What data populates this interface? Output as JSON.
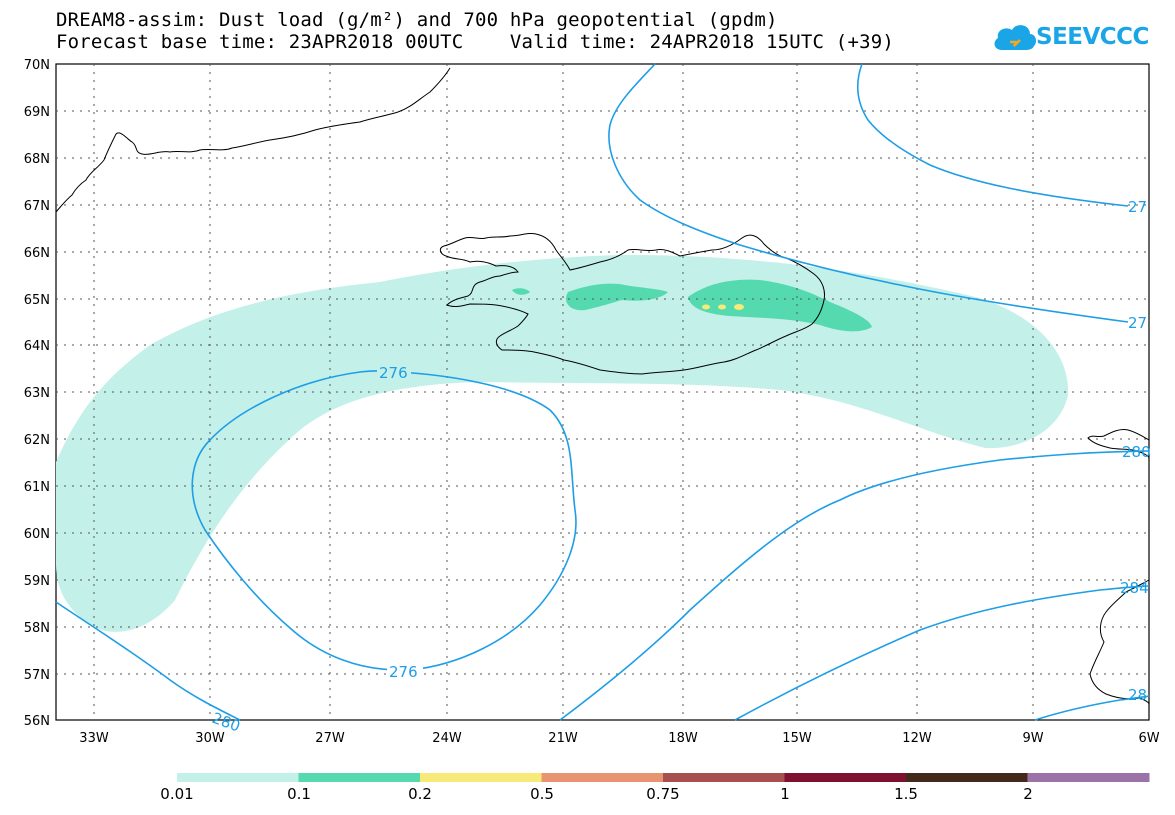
{
  "header": {
    "title_line1": "DREAM8-assim: Dust load (g/m²) and 700 hPa geopotential (gpdm)",
    "title_line2": "Forecast base time: 23APR2018 00UTC    Valid time: 24APR2018 15UTC (+39)"
  },
  "logo": {
    "text": "SEEVCCC",
    "icon": "cloud-icon",
    "color": "#1aa6e6"
  },
  "map": {
    "lat_labels": [
      "70N",
      "69N",
      "68N",
      "67N",
      "66N",
      "65N",
      "64N",
      "63N",
      "62N",
      "61N",
      "60N",
      "59N",
      "58N",
      "57N",
      "56N"
    ],
    "lon_labels": [
      "33W",
      "30W",
      "27W",
      "24W",
      "21W",
      "18W",
      "15W",
      "12W",
      "9W",
      "6W"
    ],
    "lon_range": [
      -34.5,
      -6
    ],
    "lat_range": [
      56,
      70
    ],
    "contour_color": "#1e9ee6",
    "contour_labels": [
      "276",
      "276",
      "280",
      "27",
      "27",
      "280",
      "284",
      "28"
    ]
  },
  "legend": {
    "ticks": [
      "0.01",
      "0.1",
      "0.2",
      "0.5",
      "0.75",
      "1",
      "1.5",
      "2"
    ],
    "colors": [
      "#c4f0ea",
      "#55d9ae",
      "#f8ea78",
      "#e89470",
      "#a85050",
      "#7e1030",
      "#42291a",
      "#9b73a8"
    ]
  }
}
